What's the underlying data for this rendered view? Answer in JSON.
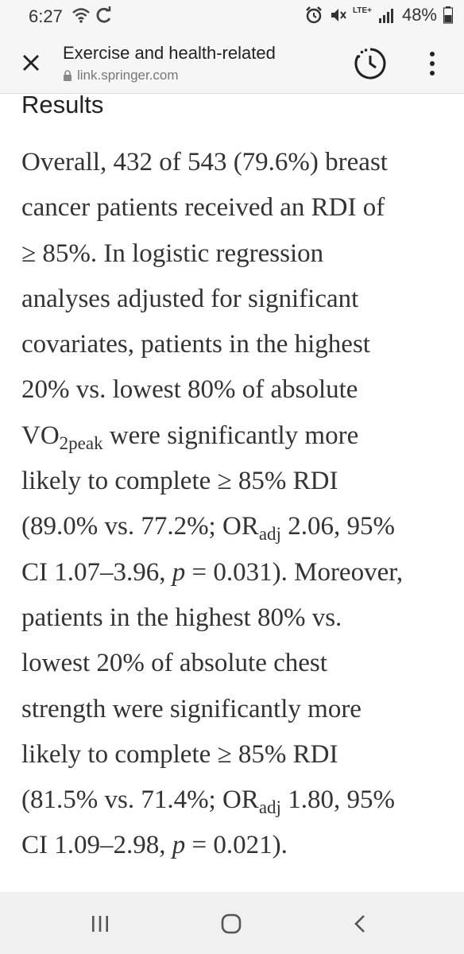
{
  "status_bar": {
    "time": "6:27",
    "network": "LTE+",
    "battery": "48%"
  },
  "toolbar": {
    "title": "Exercise and health-related",
    "url": "link.springer.com"
  },
  "article": {
    "heading": "Results",
    "lines": [
      "Overall, 432 of 543 (79.6%) breast",
      "cancer patients received an RDI of",
      "≥ 85%. In logistic regression",
      "analyses adjusted for significant",
      "covariates, patients in the highest",
      "20% vs. lowest 80% of absolute",
      [
        "VO",
        "2peak",
        " were significantly more"
      ],
      "likely to complete ≥ 85% RDI",
      [
        "(89.0% vs. 77.2%; OR",
        "adj",
        " 2.06, 95%"
      ],
      [
        "CI 1.07–3.96, ",
        "p",
        " = 0.031). Moreover,"
      ],
      "patients in the highest 80% vs.",
      "lowest 20% of absolute chest",
      "strength were significantly more",
      "likely to complete ≥ 85% RDI",
      [
        "(81.5% vs. 71.4%; OR",
        "adj",
        " 1.80, 95%"
      ],
      [
        "CI 1.09–2.98, ",
        "p",
        " = 0.021)."
      ]
    ]
  },
  "icons": {
    "close": "close-icon",
    "lock": "lock-icon",
    "timer": "timer-icon",
    "menu": "more-vert-icon",
    "recents": "recents-icon",
    "home": "home-icon",
    "back": "back-icon"
  }
}
